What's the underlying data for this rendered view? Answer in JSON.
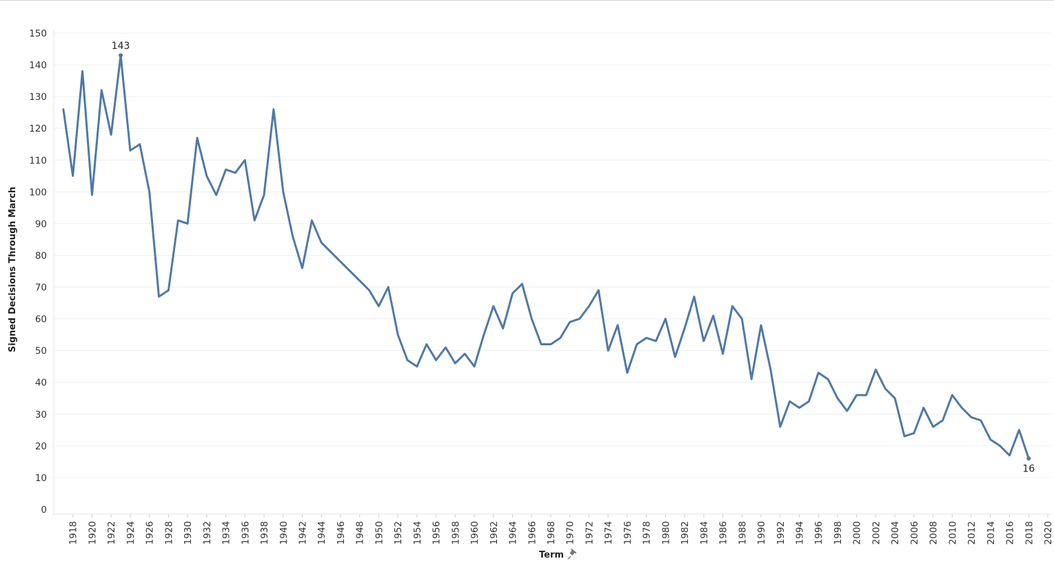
{
  "chart_data": {
    "type": "line",
    "xlabel": "Term",
    "ylabel": "Signed Decisions Through March",
    "xlim": [
      1916,
      2020
    ],
    "ylim": [
      0,
      150
    ],
    "x_ticks": [
      1918,
      1920,
      1922,
      1924,
      1926,
      1928,
      1930,
      1932,
      1934,
      1936,
      1938,
      1940,
      1942,
      1944,
      1946,
      1948,
      1950,
      1952,
      1954,
      1956,
      1958,
      1960,
      1962,
      1964,
      1966,
      1968,
      1970,
      1972,
      1974,
      1976,
      1978,
      1980,
      1982,
      1984,
      1986,
      1988,
      1990,
      1992,
      1994,
      1996,
      1998,
      2000,
      2002,
      2004,
      2006,
      2008,
      2010,
      2012,
      2014,
      2016,
      2018,
      2020
    ],
    "y_ticks": [
      0,
      10,
      20,
      30,
      40,
      50,
      60,
      70,
      80,
      90,
      100,
      110,
      120,
      130,
      140,
      150
    ],
    "grid": "horizontal",
    "line_color": "#4e79a7",
    "series": [
      {
        "x": [
          1917,
          1918,
          1919,
          1920,
          1921,
          1922,
          1923,
          1924,
          1925,
          1926,
          1927,
          1928,
          1929,
          1930,
          1931,
          1932,
          1933,
          1934,
          1935,
          1936,
          1937,
          1938,
          1939,
          1940,
          1941,
          1942,
          1943,
          1944,
          1949,
          1950,
          1951,
          1952,
          1953,
          1954,
          1955,
          1956,
          1957,
          1958,
          1959,
          1960,
          1961,
          1962,
          1963,
          1964,
          1965,
          1966,
          1967,
          1968,
          1969,
          1970,
          1971,
          1972,
          1973,
          1974,
          1975,
          1976,
          1977,
          1978,
          1979,
          1980,
          1981,
          1982,
          1983,
          1984,
          1985,
          1986,
          1987,
          1988,
          1989,
          1990,
          1991,
          1992,
          1993,
          1994,
          1995,
          1996,
          1997,
          1998,
          1999,
          2000,
          2001,
          2002,
          2003,
          2004,
          2005,
          2006,
          2007,
          2008,
          2009,
          2010,
          2011,
          2012,
          2013,
          2014,
          2015,
          2016,
          2017,
          2018
        ],
        "values": [
          126,
          105,
          138,
          99,
          132,
          118,
          143,
          113,
          115,
          100,
          67,
          69,
          91,
          90,
          117,
          105,
          99,
          107,
          106,
          110,
          91,
          99,
          126,
          100,
          86,
          76,
          91,
          84,
          69,
          64,
          70,
          55,
          47,
          45,
          52,
          47,
          51,
          46,
          49,
          45,
          55,
          64,
          57,
          68,
          71,
          60,
          52,
          52,
          54,
          59,
          60,
          64,
          69,
          50,
          58,
          43,
          52,
          54,
          53,
          60,
          48,
          57,
          67,
          53,
          61,
          49,
          64,
          60,
          41,
          58,
          44,
          26,
          34,
          32,
          34,
          43,
          41,
          35,
          31,
          36,
          36,
          44,
          38,
          35,
          23,
          24,
          32,
          26,
          28,
          36,
          32,
          29,
          28,
          22,
          20,
          17,
          25,
          16
        ]
      }
    ],
    "annotations": [
      {
        "x": 1923,
        "y": 143,
        "label": "143"
      },
      {
        "x": 2018,
        "y": 16,
        "label": "16"
      }
    ]
  },
  "pin_icon": "pin-icon"
}
